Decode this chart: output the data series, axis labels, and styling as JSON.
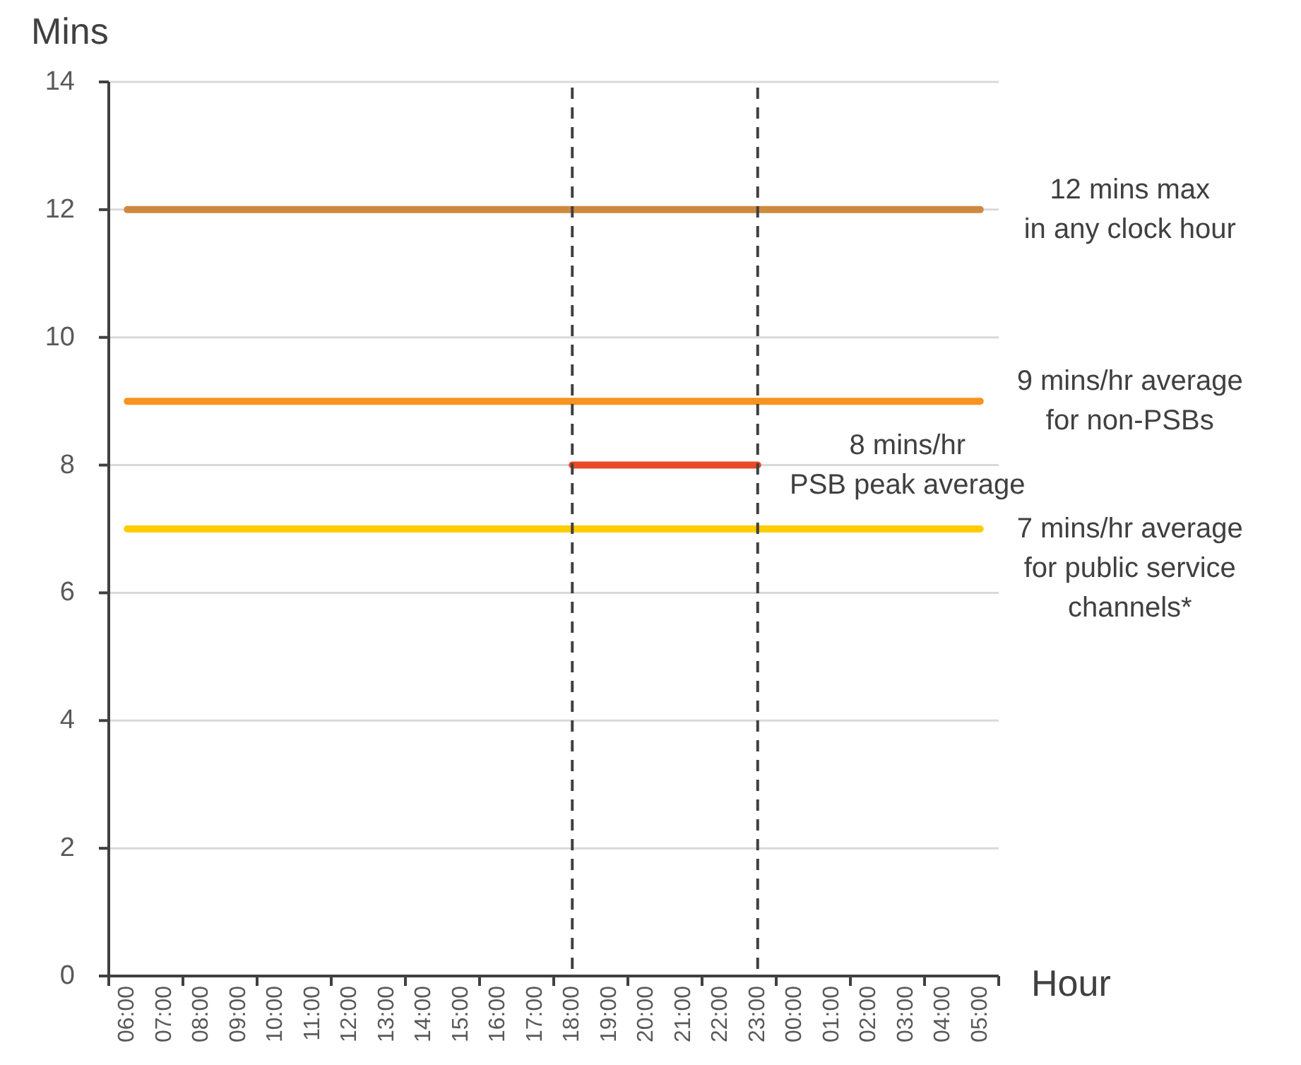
{
  "chart_data": {
    "type": "line",
    "ylabel": "Mins",
    "xlabel": "Hour",
    "categories": [
      "06:00",
      "07:00",
      "08:00",
      "09:00",
      "10:00",
      "11:00",
      "12:00",
      "13:00",
      "14:00",
      "15:00",
      "16:00",
      "17:00",
      "18:00",
      "19:00",
      "20:00",
      "21:00",
      "22:00",
      "23:00",
      "00:00",
      "01:00",
      "02:00",
      "03:00",
      "04:00",
      "05:00"
    ],
    "ylim": [
      0,
      14
    ],
    "yticks": [
      0,
      2,
      4,
      6,
      8,
      10,
      12,
      14
    ],
    "grid": "y",
    "line_style": "solid",
    "series": [
      {
        "name": "12 mins max\nin any clock hour",
        "color": "#cd8a3f",
        "values": [
          12,
          12,
          12,
          12,
          12,
          12,
          12,
          12,
          12,
          12,
          12,
          12,
          12,
          12,
          12,
          12,
          12,
          12,
          12,
          12,
          12,
          12,
          12,
          12
        ]
      },
      {
        "name": "9 mins/hr average\nfor non-PSBs",
        "color": "#f7931e",
        "values": [
          9,
          9,
          9,
          9,
          9,
          9,
          9,
          9,
          9,
          9,
          9,
          9,
          9,
          9,
          9,
          9,
          9,
          9,
          9,
          9,
          9,
          9,
          9,
          9
        ]
      },
      {
        "name": "8 mins/hr\nPSB peak average",
        "color": "#e84a27",
        "values": [
          null,
          null,
          null,
          null,
          null,
          null,
          null,
          null,
          null,
          null,
          null,
          null,
          8,
          8,
          8,
          8,
          8,
          8,
          null,
          null,
          null,
          null,
          null,
          null
        ]
      },
      {
        "name": "7 mins/hr average\nfor public service\nchannels*",
        "color": "#ffcc00",
        "values": [
          7,
          7,
          7,
          7,
          7,
          7,
          7,
          7,
          7,
          7,
          7,
          7,
          7,
          7,
          7,
          7,
          7,
          7,
          7,
          7,
          7,
          7,
          7,
          7
        ]
      }
    ],
    "ref_lines": [
      {
        "axis": "x",
        "value": "18:00",
        "color": "#404040",
        "line_style": "dashed"
      },
      {
        "axis": "x",
        "value": "23:00",
        "color": "#404040",
        "line_style": "dashed"
      }
    ]
  }
}
